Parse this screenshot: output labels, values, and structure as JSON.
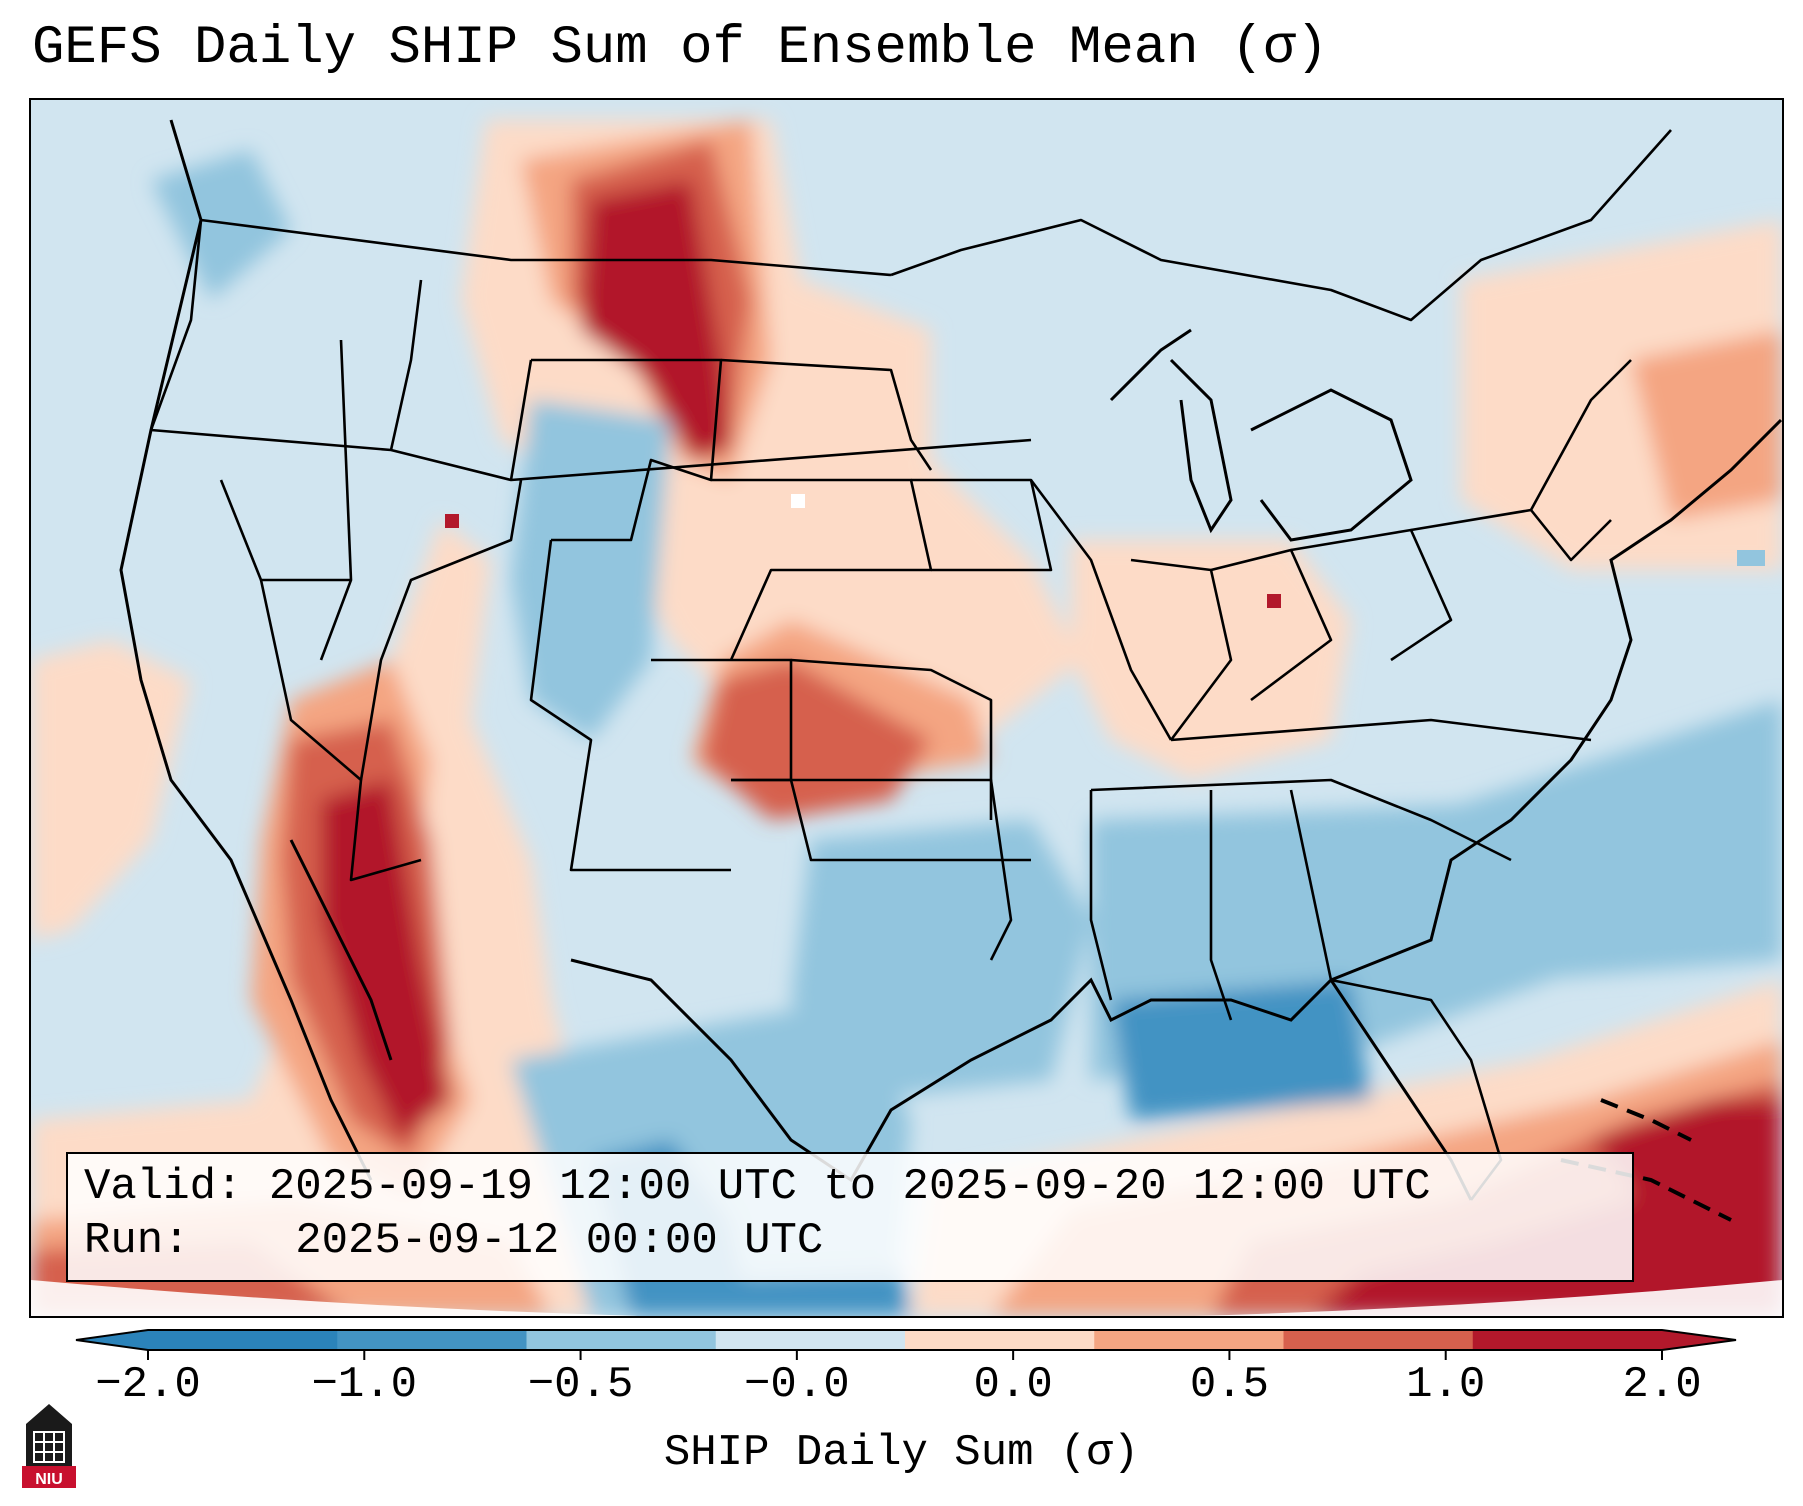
{
  "title": "GEFS Daily SHIP Sum of Ensemble Mean (σ)",
  "info": {
    "valid_label": "Valid:",
    "valid_value": "2025-09-19 12:00 UTC to 2025-09-20 12:00 UTC",
    "run_label": "Run:",
    "run_value": "2025-09-12 00:00 UTC"
  },
  "colorbar": {
    "label": "SHIP Daily Sum (σ)",
    "ticks": [
      "−2.0",
      "−1.0",
      "−0.5",
      "−0.0",
      "0.0",
      "0.5",
      "1.0",
      "2.0"
    ],
    "colors": [
      "#2b83ba",
      "#4393c3",
      "#92c5de",
      "#d1e5f0",
      "#fddbc7",
      "#f4a582",
      "#d6604d",
      "#b2182b"
    ],
    "extend": "both"
  },
  "map": {
    "projection": "Lambert Conformal",
    "region": "CONUS",
    "background_color": "#d1e5f0"
  },
  "logo": {
    "text": "NIU"
  }
}
